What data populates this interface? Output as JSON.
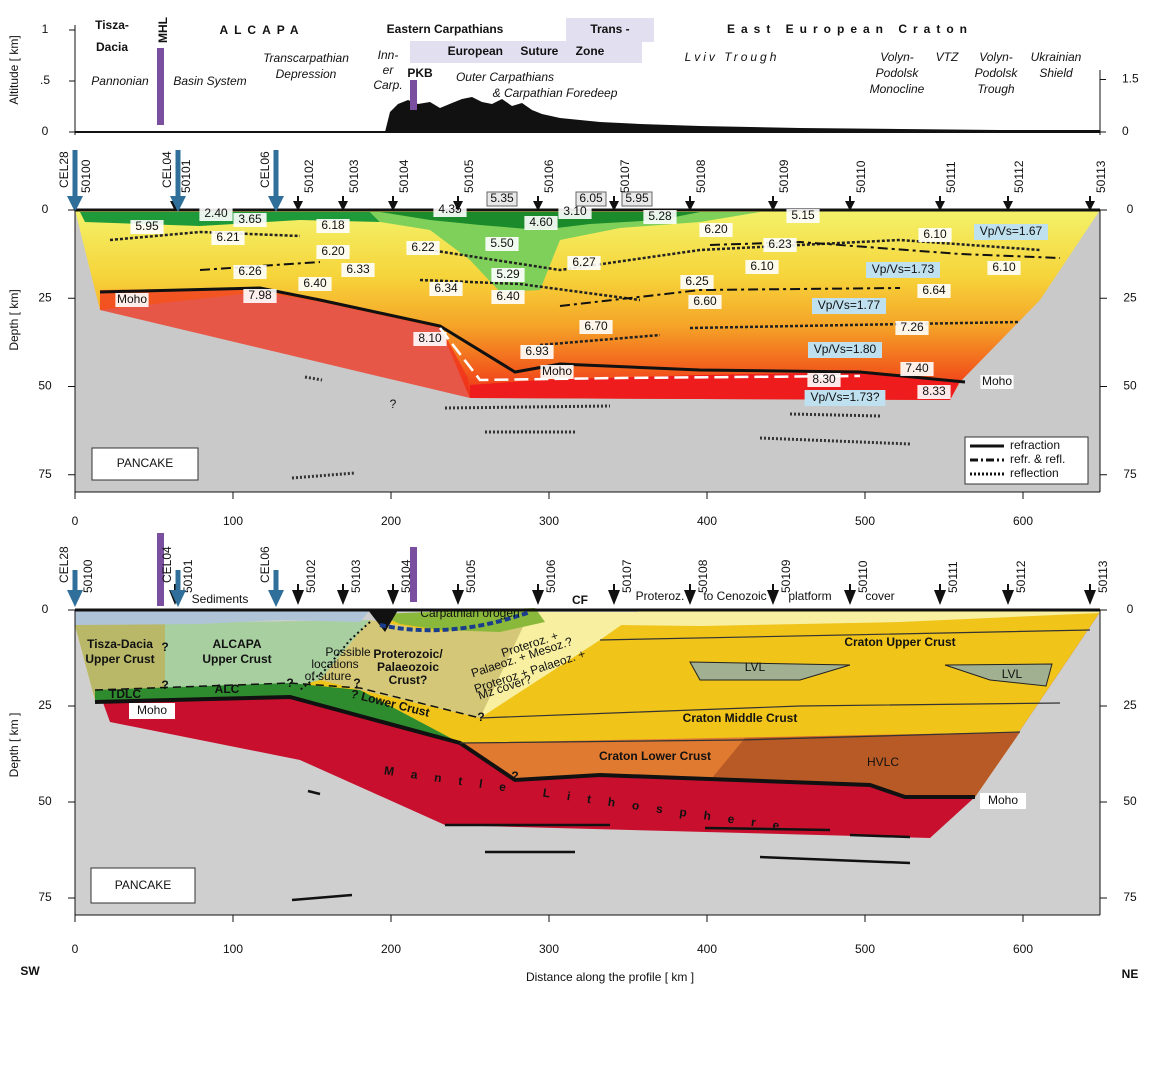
{
  "header": {
    "region_labels": [
      "Tisza-",
      "Dacia",
      "MHL",
      "ALCAPA",
      "Eastern Carpathians",
      "Trans -",
      "European Suture Zone",
      "East European Craton",
      "Pannonian",
      "Basin System",
      "Transcarpathian",
      "Depression",
      "Inn-",
      "er",
      "Carp.",
      "PKB",
      "Outer Carpathians",
      "& Carpathian Foredeep",
      "Lviv Trough",
      "Volyn-",
      "Podolsk",
      "Monocline",
      "VTZ",
      "Volyn-",
      "Podolsk",
      "Trough",
      "Ukrainian",
      "Shield"
    ],
    "altitude_label": "Altitude [ km]",
    "altitude_ticks_left": [
      1,
      {
        "value": 0.5,
        "label": ".5"
      },
      0
    ],
    "altitude_ticks_right": [
      1.5,
      0
    ]
  },
  "stations": {
    "cel": [
      "CEL28",
      "CEL04",
      "CEL06"
    ],
    "ids": [
      "50100",
      "50101",
      "50102",
      "50103",
      "50104",
      "50105",
      "50106",
      "50107",
      "50108",
      "50109",
      "50110",
      "50111",
      "50112",
      "50113"
    ]
  },
  "velocity_panel": {
    "depth_label": "Depth  [ km]",
    "labels": [
      "2.40",
      "3.65",
      "5.95",
      "6.21",
      "6.18",
      "6.20",
      "6.22",
      "5.50",
      "4.35",
      "5.35",
      "4.60",
      "3.10",
      "6.05",
      "5.95",
      "5.28",
      "5.15",
      "6.20",
      "6.23",
      "6.10",
      "Vp/Vs=1.67",
      "6.27",
      "6.10",
      "Vp/Vs=1.73",
      "6.10",
      "6.26",
      "6.33",
      "5.29",
      "6.40",
      "6.34",
      "6.25",
      "6.64",
      "7.98",
      "6.40",
      "6.60",
      "Vp/Vs=1.77",
      "6.70",
      "7.26",
      "8.10",
      "6.93",
      "Vp/Vs=1.80",
      "7.40",
      "Moho",
      "8.30",
      "Moho",
      "8.33",
      "Vp/Vs=1.73?",
      "Moho",
      "?"
    ],
    "name": "PANCAKE",
    "legend": [
      "refraction",
      "refr. & refl.",
      "reflection"
    ]
  },
  "interpretation_panel": {
    "depth_label": "Depth [ km ]",
    "labels": [
      "Sediments",
      "Carpathian orogen",
      "CF",
      "Proteroz.",
      "to Cenozoic",
      "platform",
      "cover",
      "Tisza-Dacia",
      "Upper Crust",
      "?",
      "ALCAPA",
      "Upper Crust",
      "Possible",
      "locations",
      "of suture",
      "?",
      "?",
      "Proterozoic/",
      "Palaeozoic",
      "Crust?",
      "Proteroz. +",
      "Palaeoz. + Mesoz.?",
      "Proteroz + Palaeoz. +",
      "Mz cover?",
      "TDLC",
      "?",
      "ALC",
      "? Lower Crust",
      "?",
      "Moho",
      "Craton Upper Crust",
      "LVL",
      "LVL",
      "Craton Middle Crust",
      "Craton Lower Crust",
      "HVLC",
      "?",
      "Mantle Lithosphere",
      "Moho"
    ],
    "name": "PANCAKE"
  },
  "axes": {
    "depth_ticks": [
      0,
      25,
      50,
      75
    ],
    "distance_ticks": [
      0,
      100,
      200,
      300,
      400,
      500,
      600
    ],
    "distance_label": "Distance along the profile [ km ]",
    "sw": "SW",
    "ne": "NE"
  }
}
